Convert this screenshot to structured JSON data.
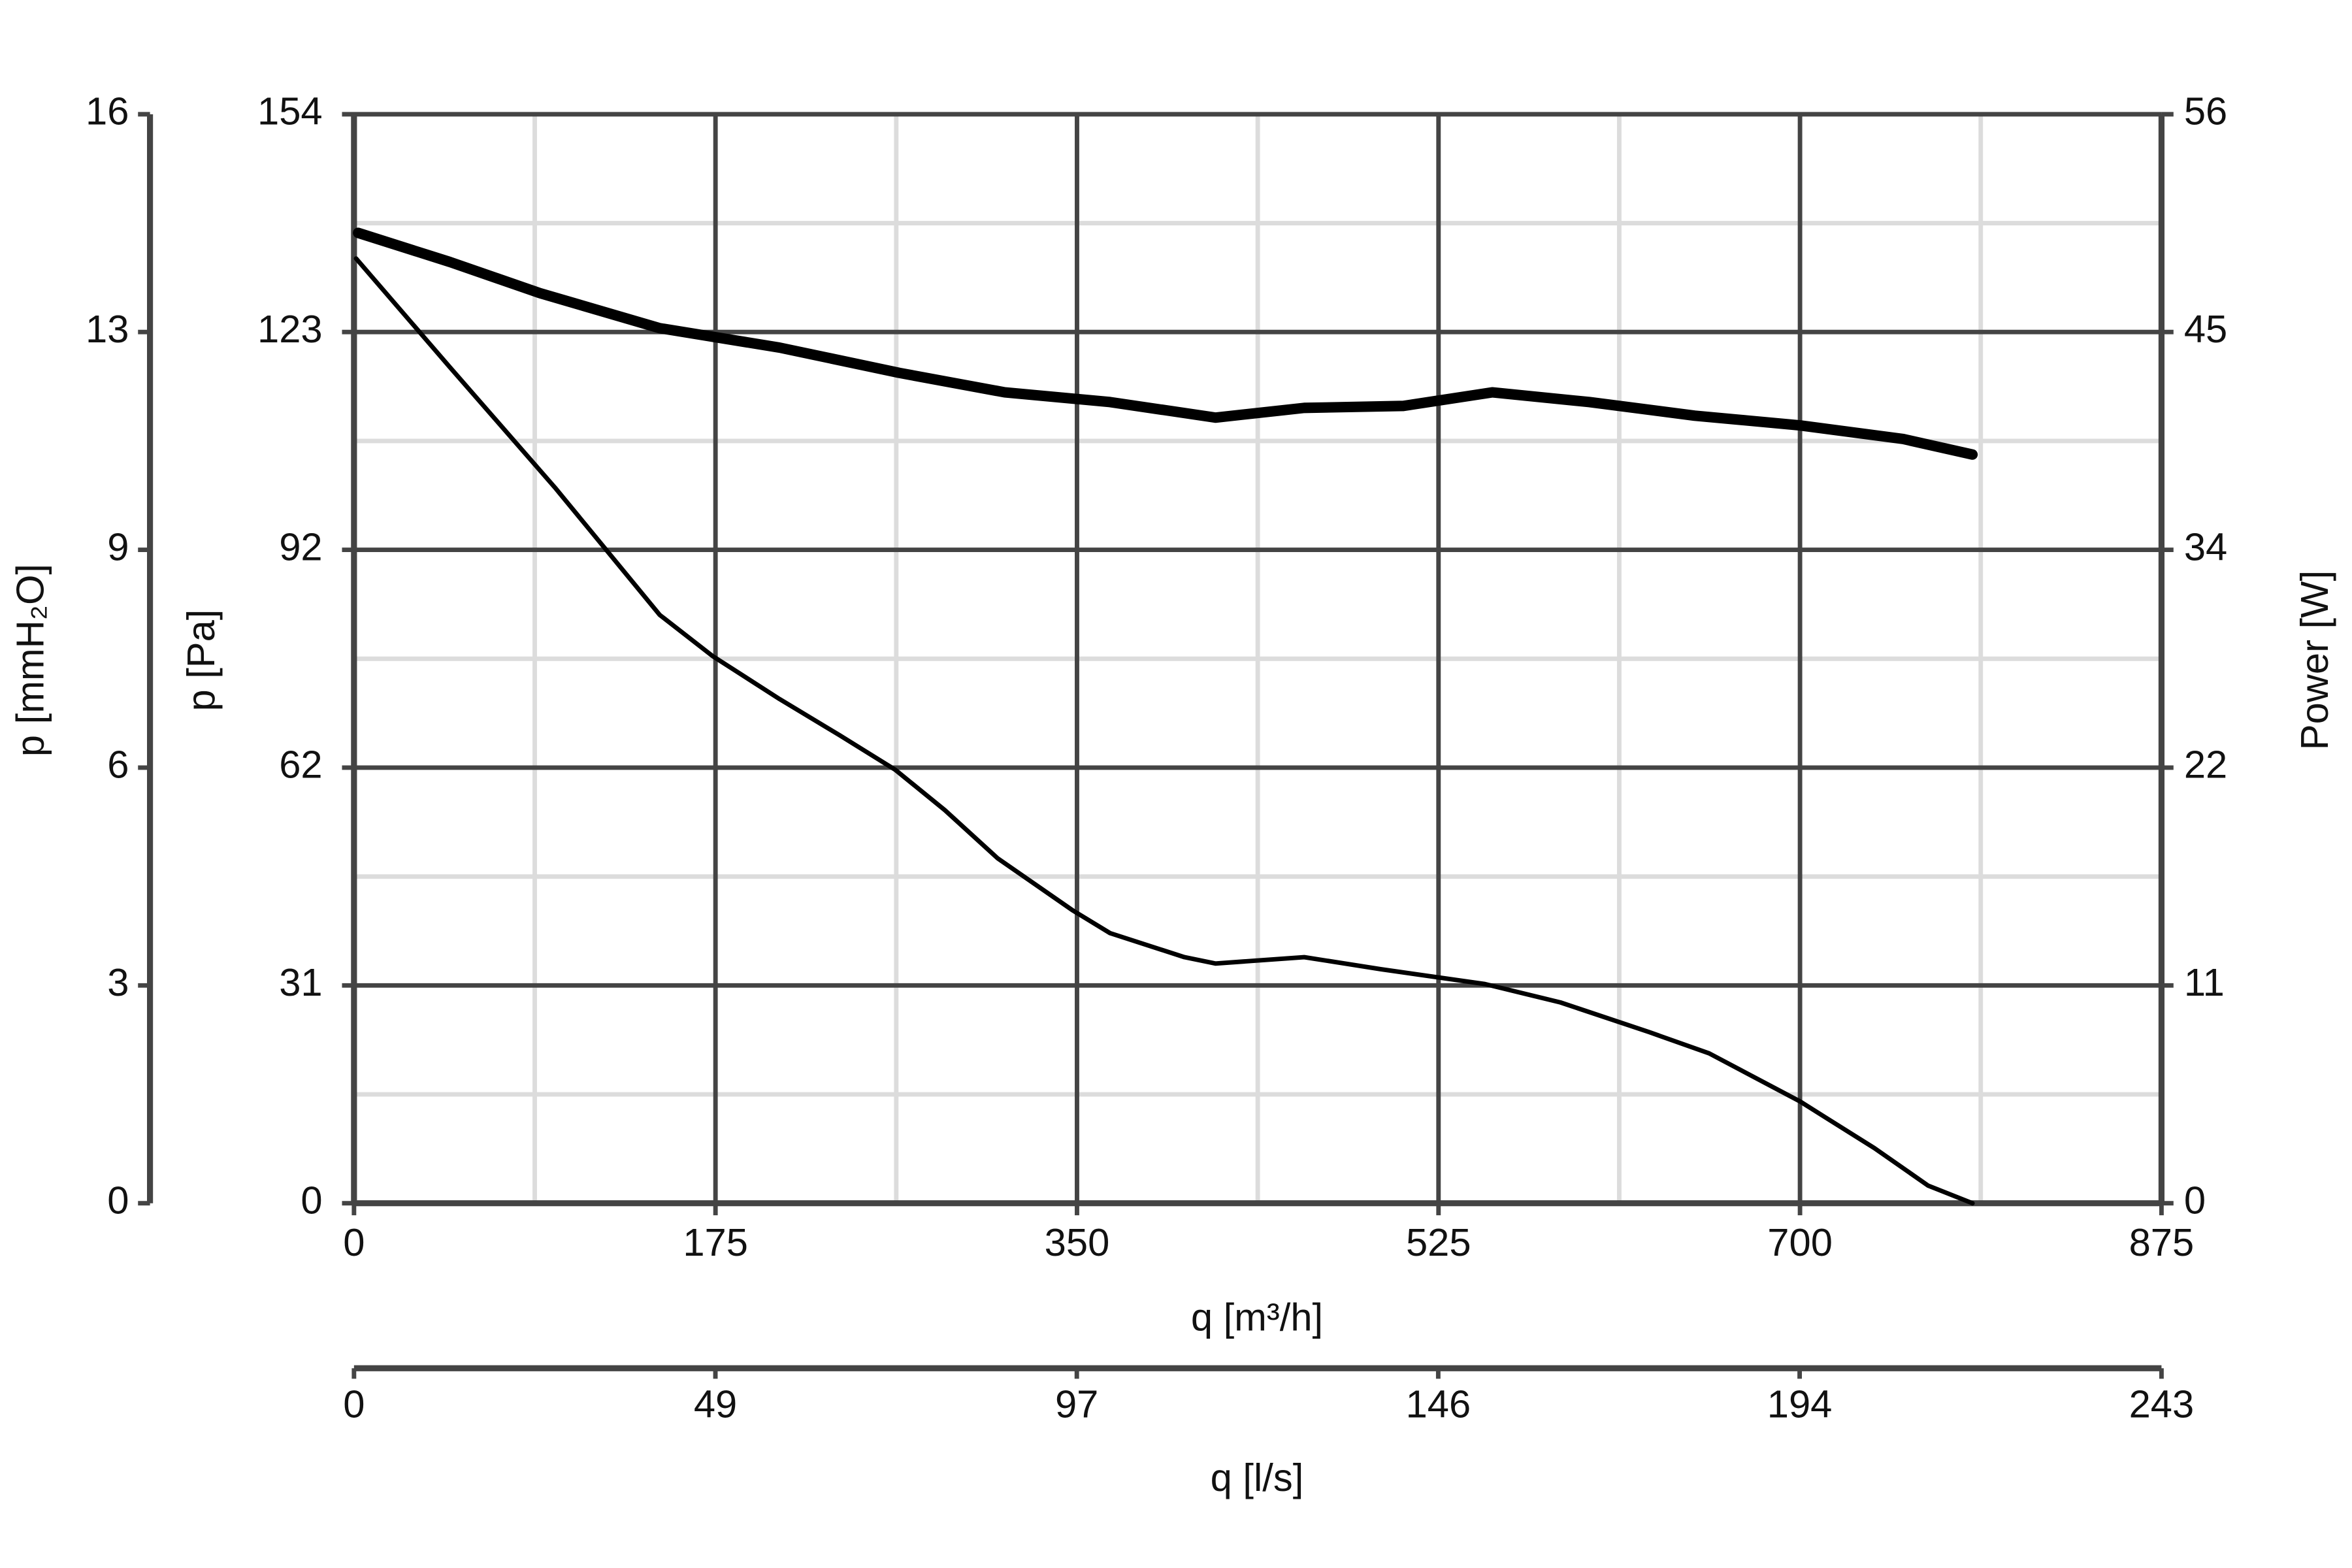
{
  "chart_data": {
    "type": "line",
    "xlabel": "q [m³/h]",
    "ylabel": "p [Pa]",
    "y2label": "Power [W]",
    "y3label": "p [mmH₂O]",
    "x2label": "q [l/s]",
    "xlim": [
      0,
      875
    ],
    "xticks": [
      0,
      175,
      350,
      525,
      700,
      875
    ],
    "x2lim": [
      0,
      243.06
    ],
    "x2ticks": [
      0,
      {
        "value": 48.6,
        "label": "49"
      },
      {
        "value": 97.2,
        "label": "97"
      },
      {
        "value": 145.8,
        "label": "146"
      },
      {
        "value": 194.4,
        "label": "194"
      },
      {
        "value": 243.06,
        "label": "243"
      }
    ],
    "ylim": [
      0,
      154
    ],
    "yticks": [
      0,
      {
        "value": 30.8,
        "label": "31"
      },
      {
        "value": 61.6,
        "label": "62"
      },
      {
        "value": 92.4,
        "label": "92"
      },
      {
        "value": 123.2,
        "label": "123"
      },
      154
    ],
    "y2lim": [
      0,
      56
    ],
    "y2ticks": [
      0,
      {
        "value": 11.2,
        "label": "11"
      },
      {
        "value": 22.4,
        "label": "22"
      },
      {
        "value": 33.6,
        "label": "34"
      },
      {
        "value": 44.8,
        "label": "45"
      },
      56
    ],
    "y3lim": [
      0,
      15.7
    ],
    "y3ticks": [
      0,
      {
        "value": 3.14,
        "label": "3"
      },
      {
        "value": 6.28,
        "label": "6"
      },
      {
        "value": 9.42,
        "label": "9"
      },
      {
        "value": 12.56,
        "label": "13"
      },
      {
        "value": 15.7,
        "label": "16"
      }
    ],
    "grid": true,
    "series": [
      {
        "color": "#000000",
        "axis": "y",
        "width": 3,
        "x": [
          1,
          46.5,
          97.3,
          148,
          173.5,
          206,
          235,
          262,
          286,
          311.5,
          348,
          366,
          402,
          417,
          460,
          497,
          547.5,
          584,
          627,
          656,
          700,
          736,
          762,
          783.5
        ],
        "values": [
          133.6,
          118.2,
          101.2,
          83.2,
          77.4,
          71.3,
          66.2,
          61.3,
          55.6,
          48.8,
          41.4,
          38.2,
          34.8,
          33.9,
          34.8,
          33.1,
          31.0,
          28.4,
          24.2,
          21.2,
          14.4,
          7.8,
          2.5,
          0
        ]
      },
      {
        "color": "#000000",
        "axis": "y2",
        "width": 7,
        "x": [
          2,
          46.5,
          90,
          148,
          206,
          264,
          315,
          366,
          417,
          460,
          508,
          551,
          598,
          649,
          700,
          750,
          783.5
        ],
        "values": [
          49.9,
          48.4,
          46.8,
          45.0,
          44.0,
          42.7,
          41.7,
          41.2,
          40.4,
          40.9,
          41.0,
          41.7,
          41.2,
          40.5,
          40.0,
          39.3,
          38.5
        ]
      }
    ]
  }
}
